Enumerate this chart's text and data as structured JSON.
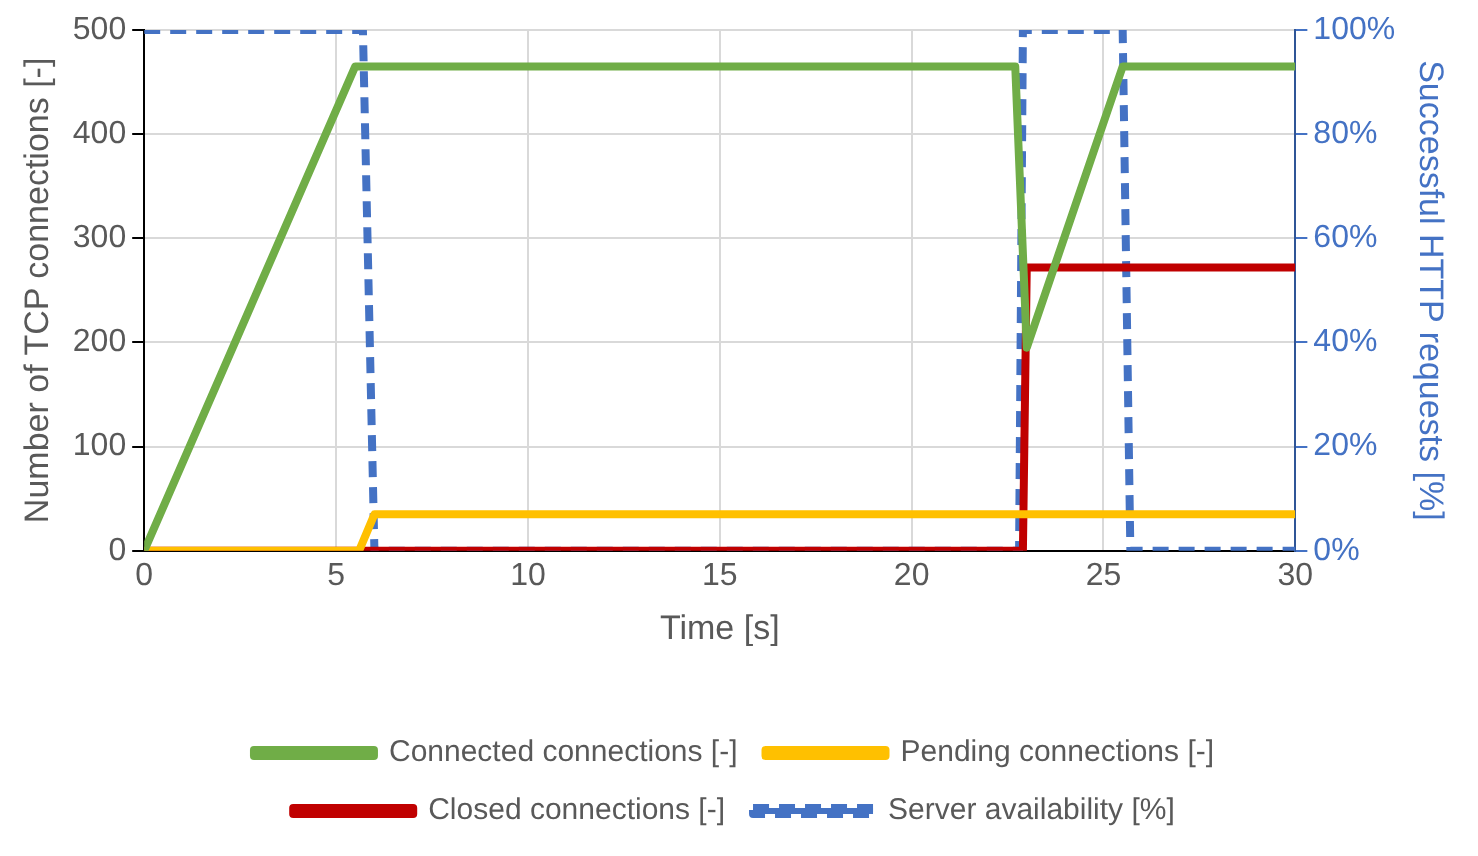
{
  "chart_data": {
    "type": "line",
    "xlabel": "Time [s]",
    "ylabel": "Number of TCP connections [-]",
    "y2label": "Successful HTTP requests [%]",
    "xlim": [
      0,
      30
    ],
    "xticks": [
      0,
      5,
      10,
      15,
      20,
      25,
      30
    ],
    "ylim": [
      0,
      500
    ],
    "yticks": [
      0,
      100,
      200,
      300,
      400,
      500
    ],
    "y2lim": [
      0,
      100
    ],
    "y2ticks": [
      {
        "value": 0,
        "label": "0%"
      },
      {
        "value": 20,
        "label": "20%"
      },
      {
        "value": 40,
        "label": "40%"
      },
      {
        "value": 60,
        "label": "60%"
      },
      {
        "value": 80,
        "label": "80%"
      },
      {
        "value": 100,
        "label": "100%"
      }
    ],
    "grid": true,
    "legend": "bottom",
    "marker": "none",
    "series": [
      {
        "name": "Connected connections [-]",
        "color": "#70ad47",
        "x": [
          0,
          5.5,
          22.7,
          23.0,
          25.5,
          30
        ],
        "values": [
          0,
          465,
          465,
          195,
          465,
          465
        ]
      },
      {
        "name": "Pending connections [-]",
        "color": "#ffc000",
        "x": [
          0,
          5.6,
          6.0,
          30
        ],
        "values": [
          0,
          0,
          35,
          35
        ]
      },
      {
        "name": "Closed connections [-]",
        "color": "#c00000",
        "x": [
          0,
          22.9,
          23.0,
          30
        ],
        "values": [
          0,
          0,
          272,
          272
        ]
      },
      {
        "name": "Server availability [%]",
        "color": "#4472c4",
        "axis": "y2",
        "line_style": "dashed",
        "x": [
          0,
          5.7,
          6.0,
          22.8,
          22.9,
          25.5,
          25.7,
          30
        ],
        "values": [
          100,
          100,
          0,
          0,
          100,
          100,
          0,
          0
        ]
      }
    ]
  }
}
